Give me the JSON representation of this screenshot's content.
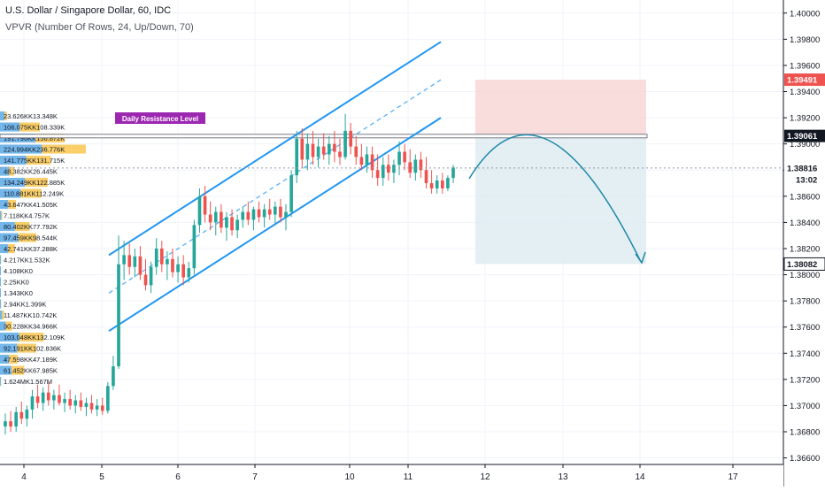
{
  "header": {
    "title": "U.S. Dollar / Singapore Dollar, 60, IDC",
    "indicator": "VPVR (Number Of Rows, 24, Up/Down, 70)"
  },
  "chart_data": {
    "type": "candlestick",
    "symbol": "USDSGD",
    "price_axis": {
      "min": 1.3655,
      "max": 1.401,
      "ticks": [
        "1.36600",
        "1.36800",
        "1.37000",
        "1.37200",
        "1.37400",
        "1.37600",
        "1.37800",
        "1.38000",
        "1.38200",
        "1.38400",
        "1.38600",
        "1.38800",
        "1.39000",
        "1.39200",
        "1.39400",
        "1.39600",
        "1.39800",
        "1.40000"
      ]
    },
    "time_axis": {
      "labels": [
        "4",
        "5",
        "6",
        "7",
        "10",
        "11",
        "12",
        "13",
        "14",
        "17"
      ]
    },
    "price_badges": [
      {
        "value": "1.39491",
        "color": "#ef5350",
        "kind": "stop"
      },
      {
        "value": "1.39061",
        "color": "#131722",
        "kind": "resistance"
      },
      {
        "value": "1.38816",
        "color": "#ffffff",
        "kind": "last"
      },
      {
        "value": "13:02",
        "color": "#ffffff",
        "kind": "countdown"
      },
      {
        "value": "1.38082",
        "color": "#ffffff",
        "kind": "target"
      }
    ],
    "annotation": {
      "text": "Daily Resistance Level",
      "color": "#9c27b0"
    },
    "resistance_level": 1.3906,
    "position": {
      "stop": 1.39491,
      "entry": 1.39061,
      "target": 1.38082
    },
    "channel": {
      "upper_start": 1.3815,
      "upper_end": 1.3978,
      "lower_start": 1.3757,
      "lower_end": 1.392
    },
    "candle_colors": {
      "up": "#26a69a",
      "down": "#ef5350"
    },
    "vpvr_rows": [
      {
        "label": "23.626KK13.348K",
        "up": 23.626,
        "down": 13.348
      },
      {
        "label": "106.075KK108.339K",
        "up": 106.075,
        "down": 108.339
      },
      {
        "label": "191.796KK156.872K",
        "up": 191.796,
        "down": 156.872
      },
      {
        "label": "224.994KK236.776K",
        "up": 224.994,
        "down": 236.776
      },
      {
        "label": "141.775KK131.715K",
        "up": 141.775,
        "down": 131.715
      },
      {
        "label": "48.382KK26.445K",
        "up": 48.382,
        "down": 26.445
      },
      {
        "label": "134.249KK122.885K",
        "up": 134.249,
        "down": 122.885
      },
      {
        "label": "110.881KK112.249K",
        "up": 110.881,
        "down": 112.249
      },
      {
        "label": "43.647KK41.505K",
        "up": 43.647,
        "down": 41.505
      },
      {
        "label": "7.118KK4.757K",
        "up": 7.118,
        "down": 4.757
      },
      {
        "label": "80.402KK77.792K",
        "up": 80.402,
        "down": 77.792
      },
      {
        "label": "97.459KK98.544K",
        "up": 97.459,
        "down": 98.544
      },
      {
        "label": "42.741KK37.288K",
        "up": 42.741,
        "down": 37.288
      },
      {
        "label": "4.217KK1.532K",
        "up": 4.217,
        "down": 1.532
      },
      {
        "label": "4.108KK0",
        "up": 4.108,
        "down": 0
      },
      {
        "label": "2.25KK0",
        "up": 2.25,
        "down": 0
      },
      {
        "label": "1.343KK0",
        "up": 1.343,
        "down": 0
      },
      {
        "label": "2.94KK1.399K",
        "up": 2.94,
        "down": 1.399
      },
      {
        "label": "11.487KK10.742K",
        "up": 11.487,
        "down": 10.742
      },
      {
        "label": "30.228KK34.966K",
        "up": 30.228,
        "down": 34.966
      },
      {
        "label": "103.048KK132.109K",
        "up": 103.048,
        "down": 132.109
      },
      {
        "label": "92.191KK102.836K",
        "up": 92.191,
        "down": 102.836
      },
      {
        "label": "47.598KK47.189K",
        "up": 47.598,
        "down": 47.189
      },
      {
        "label": "61.452KK67.985K",
        "up": 61.452,
        "down": 67.985
      },
      {
        "label": "1.624MK1.567M",
        "up": 1.624,
        "down": 1.567
      }
    ],
    "candles": [
      {
        "o": 1.3684,
        "h": 1.3694,
        "l": 1.3678,
        "c": 1.3688
      },
      {
        "o": 1.3688,
        "h": 1.3696,
        "l": 1.368,
        "c": 1.3684
      },
      {
        "o": 1.3684,
        "h": 1.3699,
        "l": 1.368,
        "c": 1.3695
      },
      {
        "o": 1.3695,
        "h": 1.3703,
        "l": 1.3686,
        "c": 1.369
      },
      {
        "o": 1.369,
        "h": 1.37,
        "l": 1.3684,
        "c": 1.3697
      },
      {
        "o": 1.3697,
        "h": 1.3712,
        "l": 1.369,
        "c": 1.3707
      },
      {
        "o": 1.3707,
        "h": 1.3716,
        "l": 1.3698,
        "c": 1.3702
      },
      {
        "o": 1.3702,
        "h": 1.3714,
        "l": 1.3696,
        "c": 1.371
      },
      {
        "o": 1.371,
        "h": 1.3718,
        "l": 1.37,
        "c": 1.3704
      },
      {
        "o": 1.3704,
        "h": 1.3712,
        "l": 1.3697,
        "c": 1.3708
      },
      {
        "o": 1.3708,
        "h": 1.3716,
        "l": 1.37,
        "c": 1.3702
      },
      {
        "o": 1.3702,
        "h": 1.371,
        "l": 1.3695,
        "c": 1.3705
      },
      {
        "o": 1.3705,
        "h": 1.3712,
        "l": 1.3697,
        "c": 1.37
      },
      {
        "o": 1.37,
        "h": 1.3708,
        "l": 1.3694,
        "c": 1.3704
      },
      {
        "o": 1.3704,
        "h": 1.371,
        "l": 1.3696,
        "c": 1.3699
      },
      {
        "o": 1.3699,
        "h": 1.3706,
        "l": 1.3692,
        "c": 1.3702
      },
      {
        "o": 1.3702,
        "h": 1.3708,
        "l": 1.3694,
        "c": 1.3697
      },
      {
        "o": 1.3697,
        "h": 1.3705,
        "l": 1.3692,
        "c": 1.37
      },
      {
        "o": 1.37,
        "h": 1.3706,
        "l": 1.3693,
        "c": 1.3696
      },
      {
        "o": 1.3696,
        "h": 1.3718,
        "l": 1.3694,
        "c": 1.3715
      },
      {
        "o": 1.3715,
        "h": 1.3738,
        "l": 1.3712,
        "c": 1.373
      },
      {
        "o": 1.373,
        "h": 1.383,
        "l": 1.3728,
        "c": 1.3808
      },
      {
        "o": 1.3808,
        "h": 1.3826,
        "l": 1.3796,
        "c": 1.3815
      },
      {
        "o": 1.3815,
        "h": 1.3824,
        "l": 1.38,
        "c": 1.3806
      },
      {
        "o": 1.3806,
        "h": 1.382,
        "l": 1.3798,
        "c": 1.3814
      },
      {
        "o": 1.3814,
        "h": 1.3822,
        "l": 1.3796,
        "c": 1.38
      },
      {
        "o": 1.38,
        "h": 1.3812,
        "l": 1.3788,
        "c": 1.3792
      },
      {
        "o": 1.3792,
        "h": 1.381,
        "l": 1.3786,
        "c": 1.3806
      },
      {
        "o": 1.3806,
        "h": 1.3828,
        "l": 1.38,
        "c": 1.382
      },
      {
        "o": 1.382,
        "h": 1.3826,
        "l": 1.3802,
        "c": 1.3808
      },
      {
        "o": 1.3808,
        "h": 1.3818,
        "l": 1.3796,
        "c": 1.3812
      },
      {
        "o": 1.3812,
        "h": 1.382,
        "l": 1.3798,
        "c": 1.3802
      },
      {
        "o": 1.3802,
        "h": 1.3814,
        "l": 1.3794,
        "c": 1.3808
      },
      {
        "o": 1.3808,
        "h": 1.3815,
        "l": 1.3792,
        "c": 1.3798
      },
      {
        "o": 1.3798,
        "h": 1.381,
        "l": 1.3794,
        "c": 1.3805
      },
      {
        "o": 1.3805,
        "h": 1.3842,
        "l": 1.38,
        "c": 1.3838
      },
      {
        "o": 1.3838,
        "h": 1.3866,
        "l": 1.3832,
        "c": 1.386
      },
      {
        "o": 1.386,
        "h": 1.3868,
        "l": 1.384,
        "c": 1.3846
      },
      {
        "o": 1.3846,
        "h": 1.3856,
        "l": 1.3834,
        "c": 1.384
      },
      {
        "o": 1.384,
        "h": 1.3852,
        "l": 1.383,
        "c": 1.3848
      },
      {
        "o": 1.3848,
        "h": 1.3854,
        "l": 1.3832,
        "c": 1.3836
      },
      {
        "o": 1.3836,
        "h": 1.3848,
        "l": 1.3826,
        "c": 1.3844
      },
      {
        "o": 1.3844,
        "h": 1.385,
        "l": 1.383,
        "c": 1.3834
      },
      {
        "o": 1.3834,
        "h": 1.3846,
        "l": 1.3828,
        "c": 1.3842
      },
      {
        "o": 1.3842,
        "h": 1.3852,
        "l": 1.3836,
        "c": 1.3848
      },
      {
        "o": 1.3848,
        "h": 1.3856,
        "l": 1.3838,
        "c": 1.3842
      },
      {
        "o": 1.3842,
        "h": 1.3852,
        "l": 1.3834,
        "c": 1.385
      },
      {
        "o": 1.385,
        "h": 1.3856,
        "l": 1.384,
        "c": 1.3844
      },
      {
        "o": 1.3844,
        "h": 1.3854,
        "l": 1.3836,
        "c": 1.385
      },
      {
        "o": 1.385,
        "h": 1.3858,
        "l": 1.3842,
        "c": 1.3846
      },
      {
        "o": 1.3846,
        "h": 1.3856,
        "l": 1.3838,
        "c": 1.3852
      },
      {
        "o": 1.3852,
        "h": 1.3858,
        "l": 1.384,
        "c": 1.3844
      },
      {
        "o": 1.3844,
        "h": 1.3854,
        "l": 1.3834,
        "c": 1.3848
      },
      {
        "o": 1.3848,
        "h": 1.388,
        "l": 1.3844,
        "c": 1.3876
      },
      {
        "o": 1.3876,
        "h": 1.391,
        "l": 1.387,
        "c": 1.3904
      },
      {
        "o": 1.3904,
        "h": 1.3912,
        "l": 1.3882,
        "c": 1.3888
      },
      {
        "o": 1.3888,
        "h": 1.3908,
        "l": 1.388,
        "c": 1.39
      },
      {
        "o": 1.39,
        "h": 1.391,
        "l": 1.3884,
        "c": 1.389
      },
      {
        "o": 1.389,
        "h": 1.3904,
        "l": 1.3882,
        "c": 1.3898
      },
      {
        "o": 1.3898,
        "h": 1.3908,
        "l": 1.3888,
        "c": 1.3892
      },
      {
        "o": 1.3892,
        "h": 1.3906,
        "l": 1.3884,
        "c": 1.39
      },
      {
        "o": 1.39,
        "h": 1.391,
        "l": 1.3886,
        "c": 1.3894
      },
      {
        "o": 1.3894,
        "h": 1.3904,
        "l": 1.3884,
        "c": 1.389
      },
      {
        "o": 1.389,
        "h": 1.3923,
        "l": 1.3888,
        "c": 1.391
      },
      {
        "o": 1.391,
        "h": 1.3916,
        "l": 1.3892,
        "c": 1.3898
      },
      {
        "o": 1.3898,
        "h": 1.3906,
        "l": 1.3884,
        "c": 1.389
      },
      {
        "o": 1.389,
        "h": 1.39,
        "l": 1.388,
        "c": 1.3884
      },
      {
        "o": 1.3884,
        "h": 1.3898,
        "l": 1.3878,
        "c": 1.3892
      },
      {
        "o": 1.3892,
        "h": 1.3898,
        "l": 1.3874,
        "c": 1.388
      },
      {
        "o": 1.388,
        "h": 1.3892,
        "l": 1.3868,
        "c": 1.3874
      },
      {
        "o": 1.3874,
        "h": 1.389,
        "l": 1.3868,
        "c": 1.3884
      },
      {
        "o": 1.3884,
        "h": 1.3892,
        "l": 1.3872,
        "c": 1.3878
      },
      {
        "o": 1.3878,
        "h": 1.3888,
        "l": 1.387,
        "c": 1.3884
      },
      {
        "o": 1.3884,
        "h": 1.3902,
        "l": 1.3876,
        "c": 1.3894
      },
      {
        "o": 1.3894,
        "h": 1.39,
        "l": 1.388,
        "c": 1.3886
      },
      {
        "o": 1.3886,
        "h": 1.3896,
        "l": 1.3874,
        "c": 1.3878
      },
      {
        "o": 1.3878,
        "h": 1.3892,
        "l": 1.3872,
        "c": 1.3888
      },
      {
        "o": 1.3888,
        "h": 1.3894,
        "l": 1.3874,
        "c": 1.388
      },
      {
        "o": 1.388,
        "h": 1.389,
        "l": 1.3866,
        "c": 1.387
      },
      {
        "o": 1.387,
        "h": 1.388,
        "l": 1.3862,
        "c": 1.3866
      },
      {
        "o": 1.3866,
        "h": 1.3876,
        "l": 1.3862,
        "c": 1.3872
      },
      {
        "o": 1.3872,
        "h": 1.3878,
        "l": 1.3862,
        "c": 1.3866
      },
      {
        "o": 1.3866,
        "h": 1.3876,
        "l": 1.3864,
        "c": 1.3874
      },
      {
        "o": 1.3874,
        "h": 1.3884,
        "l": 1.387,
        "c": 1.3882
      }
    ]
  }
}
